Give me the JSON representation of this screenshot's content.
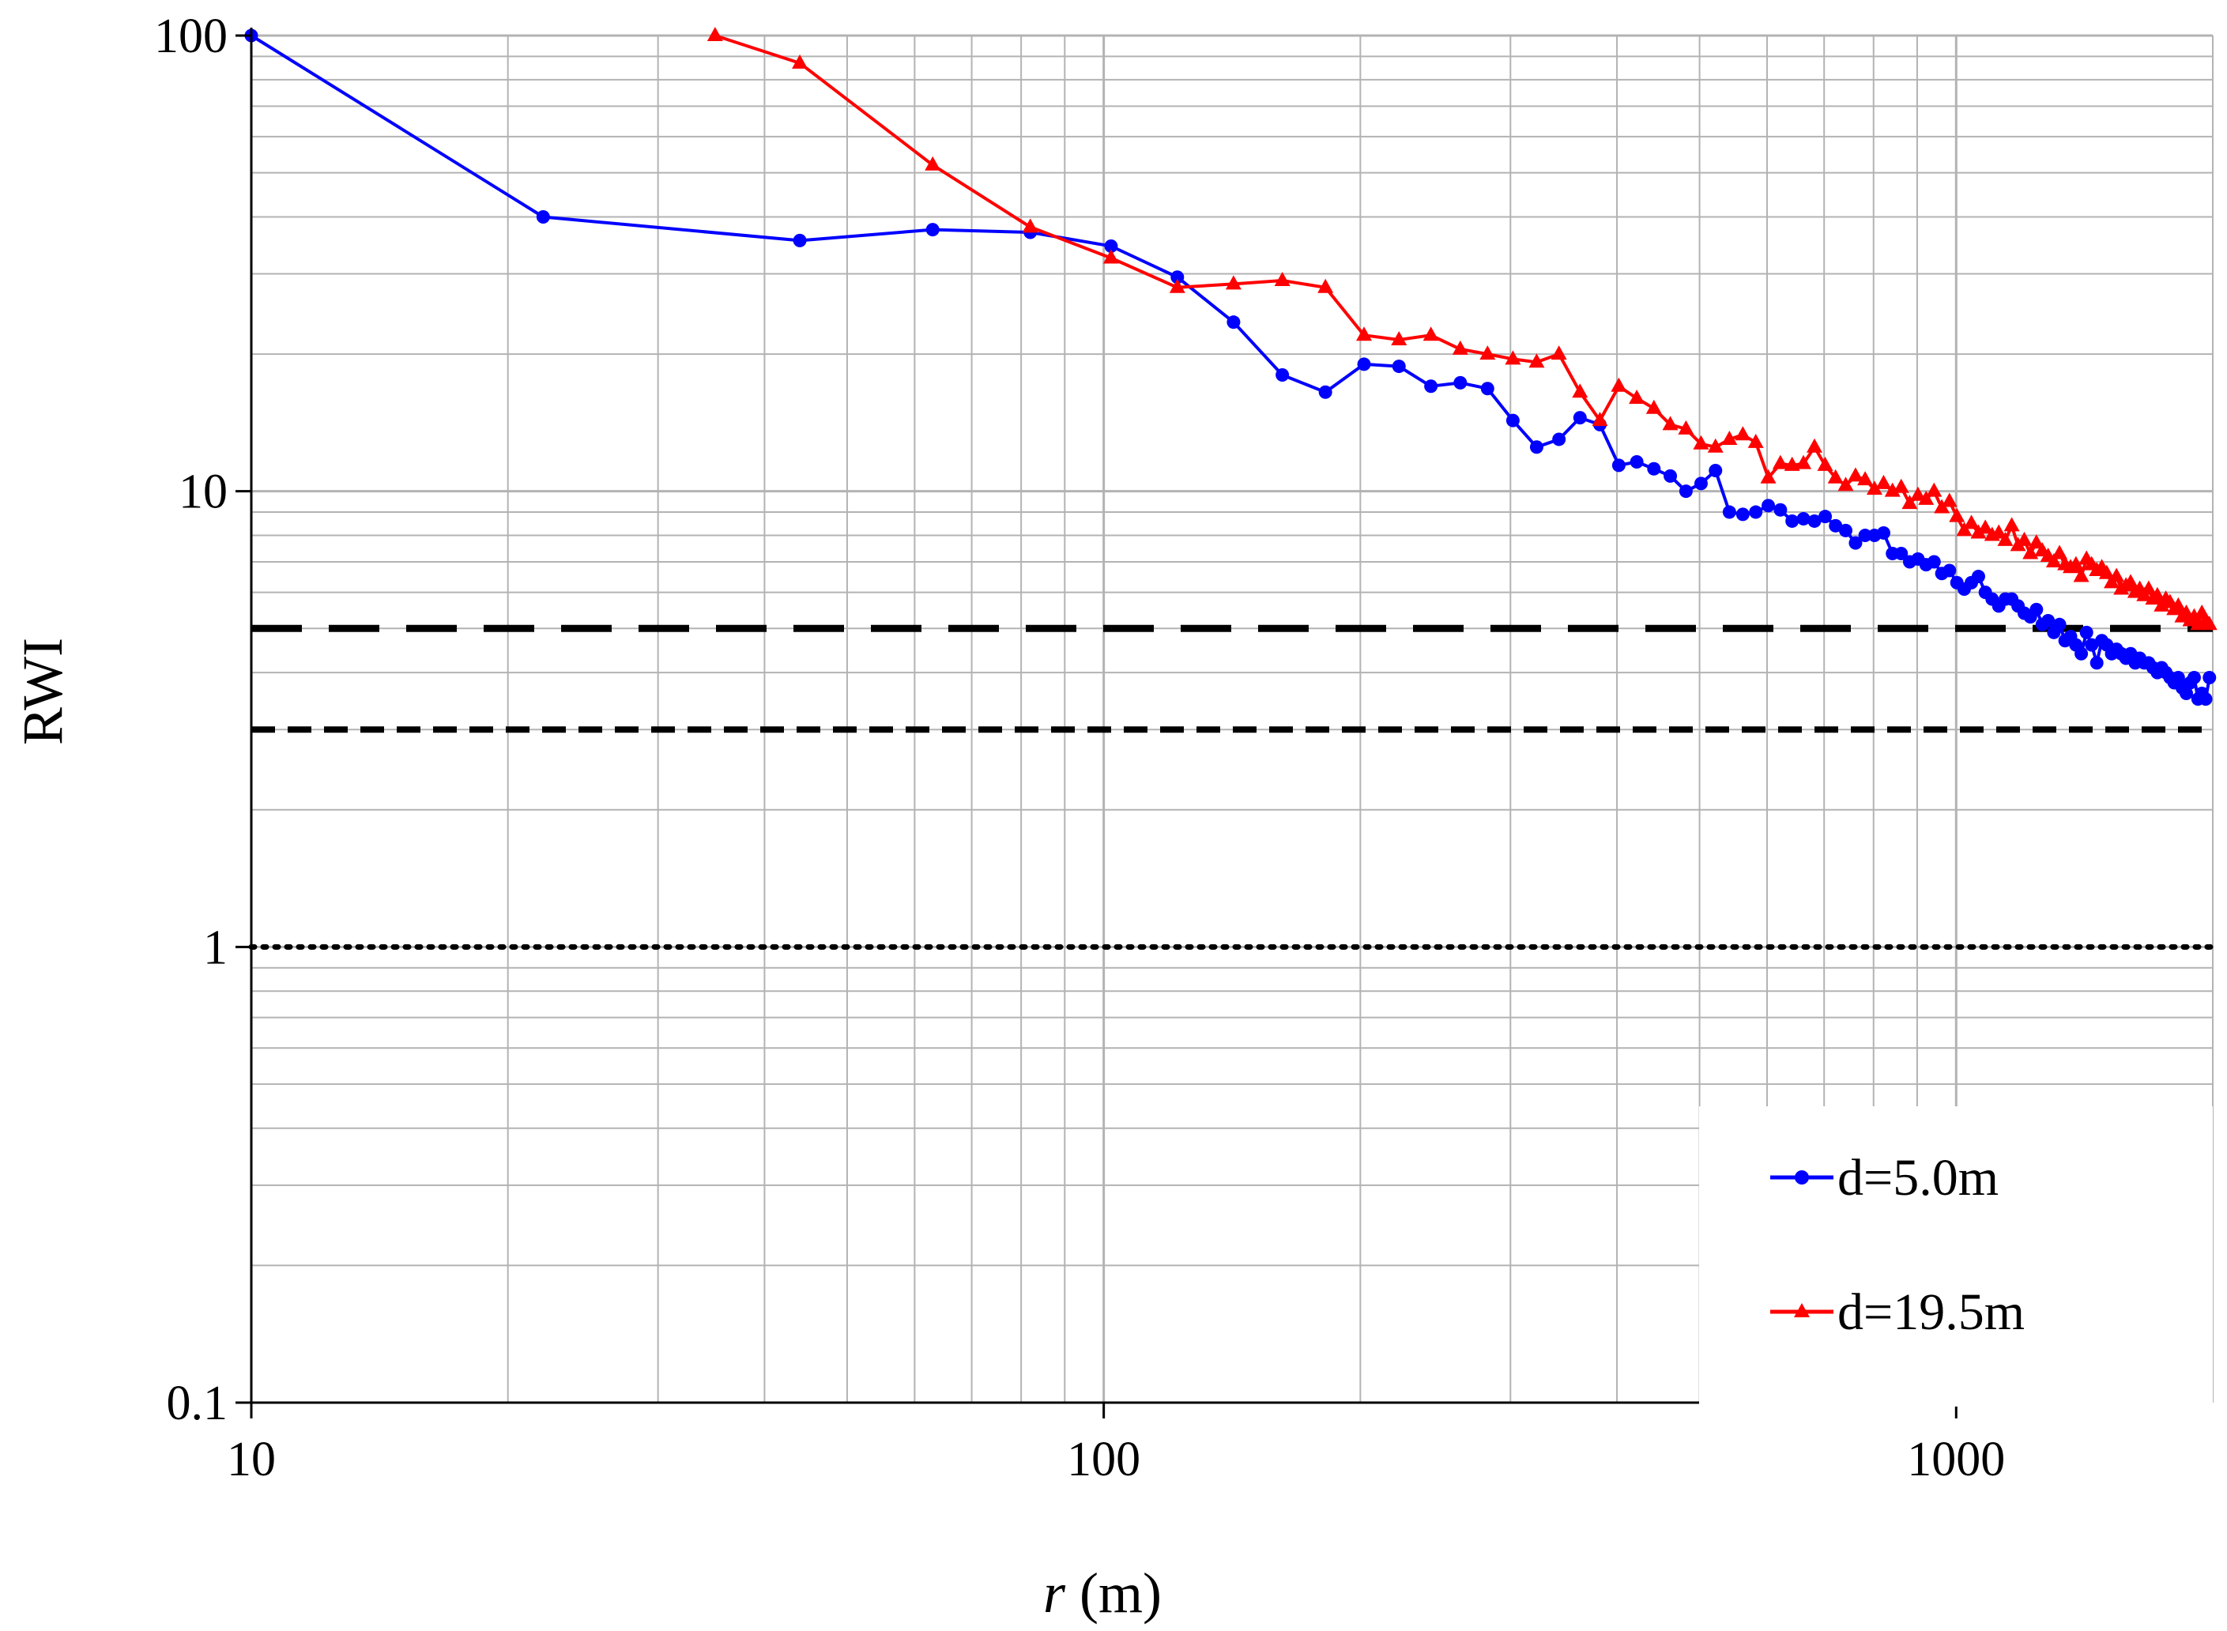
{
  "chart_data": {
    "type": "line",
    "xscale": "log",
    "yscale": "log",
    "xlim": [
      10,
      2000
    ],
    "ylim": [
      0.1,
      100
    ],
    "xlabel_italic": "r",
    "xlabel_rest": " (m)",
    "ylabel": "RWI",
    "x_ticks": [
      {
        "value": 10,
        "label": "10"
      },
      {
        "value": 100,
        "label": "100"
      },
      {
        "value": 1000,
        "label": "1000"
      }
    ],
    "y_ticks": [
      {
        "value": 0.1,
        "label": "0.1"
      },
      {
        "value": 1,
        "label": "1"
      },
      {
        "value": 10,
        "label": "10"
      },
      {
        "value": 100,
        "label": "100"
      }
    ],
    "grid": true,
    "legend_position": "bottom-right",
    "series": [
      {
        "name": "d=5.0m",
        "color": "#0000ff",
        "marker": "circle",
        "points": [
          [
            10,
            100
          ],
          [
            22,
            40
          ],
          [
            44,
            35.5
          ],
          [
            63,
            37.5
          ],
          [
            82,
            37
          ],
          [
            102,
            34.5
          ],
          [
            122,
            29.5
          ],
          [
            142,
            23.5
          ],
          [
            162,
            18
          ],
          [
            182,
            16.5
          ],
          [
            202,
            19
          ],
          [
            222,
            18.8
          ],
          [
            242,
            17
          ],
          [
            262,
            17.3
          ],
          [
            282,
            16.8
          ],
          [
            302,
            14.3
          ],
          [
            322,
            12.5
          ],
          [
            342,
            13
          ],
          [
            362,
            14.5
          ],
          [
            382,
            14
          ],
          [
            402,
            11.4
          ],
          [
            422,
            11.6
          ],
          [
            442,
            11.2
          ],
          [
            462,
            10.8
          ],
          [
            482,
            10
          ],
          [
            502,
            10.4
          ],
          [
            522,
            11.1
          ],
          [
            542,
            9
          ],
          [
            562,
            8.9
          ],
          [
            582,
            9
          ],
          [
            602,
            9.3
          ],
          [
            622,
            9.1
          ],
          [
            642,
            8.6
          ],
          [
            662,
            8.7
          ],
          [
            682,
            8.6
          ],
          [
            702,
            8.8
          ],
          [
            722,
            8.4
          ],
          [
            742,
            8.2
          ],
          [
            762,
            7.7
          ],
          [
            782,
            8
          ],
          [
            802,
            8
          ],
          [
            822,
            8.1
          ],
          [
            842,
            7.3
          ],
          [
            862,
            7.3
          ],
          [
            882,
            7
          ],
          [
            902,
            7.1
          ],
          [
            922,
            6.9
          ],
          [
            942,
            7
          ],
          [
            962,
            6.6
          ],
          [
            982,
            6.7
          ],
          [
            1002,
            6.3
          ],
          [
            1022,
            6.1
          ],
          [
            1042,
            6.3
          ],
          [
            1062,
            6.5
          ],
          [
            1082,
            6
          ],
          [
            1102,
            5.8
          ],
          [
            1122,
            5.6
          ],
          [
            1142,
            5.8
          ],
          [
            1162,
            5.8
          ],
          [
            1182,
            5.6
          ],
          [
            1202,
            5.4
          ],
          [
            1222,
            5.3
          ],
          [
            1242,
            5.5
          ],
          [
            1262,
            5.1
          ],
          [
            1282,
            5.2
          ],
          [
            1302,
            4.9
          ],
          [
            1322,
            5.1
          ],
          [
            1342,
            4.7
          ],
          [
            1362,
            4.8
          ],
          [
            1382,
            4.6
          ],
          [
            1402,
            4.4
          ],
          [
            1422,
            4.9
          ],
          [
            1442,
            4.6
          ],
          [
            1462,
            4.2
          ],
          [
            1482,
            4.7
          ],
          [
            1502,
            4.6
          ],
          [
            1522,
            4.4
          ],
          [
            1542,
            4.5
          ],
          [
            1562,
            4.4
          ],
          [
            1582,
            4.3
          ],
          [
            1602,
            4.4
          ],
          [
            1622,
            4.2
          ],
          [
            1642,
            4.3
          ],
          [
            1662,
            4.2
          ],
          [
            1682,
            4.2
          ],
          [
            1702,
            4.1
          ],
          [
            1722,
            4.0
          ],
          [
            1742,
            4.1
          ],
          [
            1762,
            4.0
          ],
          [
            1782,
            3.9
          ],
          [
            1802,
            3.8
          ],
          [
            1822,
            3.9
          ],
          [
            1842,
            3.7
          ],
          [
            1862,
            3.6
          ],
          [
            1882,
            3.8
          ],
          [
            1902,
            3.9
          ],
          [
            1922,
            3.5
          ],
          [
            1942,
            3.6
          ],
          [
            1962,
            3.5
          ],
          [
            1982,
            3.9
          ]
        ]
      },
      {
        "name": "d=19.5m",
        "color": "#ff0000",
        "marker": "triangle",
        "points": [
          [
            35,
            100
          ],
          [
            44,
            87
          ],
          [
            63,
            52
          ],
          [
            82,
            38
          ],
          [
            102,
            32.5
          ],
          [
            122,
            28
          ],
          [
            142,
            28.5
          ],
          [
            162,
            29
          ],
          [
            182,
            28
          ],
          [
            202,
            22
          ],
          [
            222,
            21.5
          ],
          [
            242,
            22
          ],
          [
            262,
            20.5
          ],
          [
            282,
            20
          ],
          [
            302,
            19.5
          ],
          [
            322,
            19.2
          ],
          [
            342,
            20
          ],
          [
            362,
            16.5
          ],
          [
            382,
            14.3
          ],
          [
            402,
            17
          ],
          [
            422,
            16
          ],
          [
            442,
            15.2
          ],
          [
            462,
            14
          ],
          [
            482,
            13.7
          ],
          [
            502,
            12.7
          ],
          [
            522,
            12.5
          ],
          [
            542,
            13
          ],
          [
            562,
            13.3
          ],
          [
            582,
            12.8
          ],
          [
            602,
            10.7
          ],
          [
            622,
            11.5
          ],
          [
            642,
            11.4
          ],
          [
            662,
            11.5
          ],
          [
            682,
            12.5
          ],
          [
            702,
            11.4
          ],
          [
            722,
            10.7
          ],
          [
            742,
            10.3
          ],
          [
            762,
            10.8
          ],
          [
            782,
            10.6
          ],
          [
            802,
            10.1
          ],
          [
            822,
            10.4
          ],
          [
            842,
            10
          ],
          [
            862,
            10.2
          ],
          [
            882,
            9.4
          ],
          [
            902,
            9.8
          ],
          [
            922,
            9.6
          ],
          [
            942,
            10
          ],
          [
            962,
            9.2
          ],
          [
            982,
            9.5
          ],
          [
            1002,
            8.8
          ],
          [
            1022,
            8.2
          ],
          [
            1042,
            8.5
          ],
          [
            1062,
            8.1
          ],
          [
            1082,
            8.3
          ],
          [
            1102,
            8
          ],
          [
            1122,
            8.1
          ],
          [
            1142,
            7.8
          ],
          [
            1162,
            8.4
          ],
          [
            1182,
            7.6
          ],
          [
            1202,
            7.8
          ],
          [
            1222,
            7.3
          ],
          [
            1242,
            7.7
          ],
          [
            1262,
            7.4
          ],
          [
            1282,
            7.2
          ],
          [
            1302,
            7
          ],
          [
            1322,
            7.3
          ],
          [
            1342,
            6.9
          ],
          [
            1362,
            6.8
          ],
          [
            1382,
            6.9
          ],
          [
            1402,
            6.5
          ],
          [
            1422,
            7.1
          ],
          [
            1442,
            6.9
          ],
          [
            1462,
            6.7
          ],
          [
            1482,
            6.8
          ],
          [
            1502,
            6.6
          ],
          [
            1522,
            6.3
          ],
          [
            1542,
            6.5
          ],
          [
            1562,
            6.1
          ],
          [
            1582,
            6.2
          ],
          [
            1602,
            6.3
          ],
          [
            1622,
            6.0
          ],
          [
            1642,
            6.1
          ],
          [
            1662,
            5.9
          ],
          [
            1682,
            6.1
          ],
          [
            1702,
            5.8
          ],
          [
            1722,
            5.9
          ],
          [
            1742,
            5.6
          ],
          [
            1762,
            5.8
          ],
          [
            1782,
            5.7
          ],
          [
            1802,
            5.5
          ],
          [
            1822,
            5.6
          ],
          [
            1842,
            5.3
          ],
          [
            1862,
            5.4
          ],
          [
            1882,
            5.2
          ],
          [
            1902,
            5.3
          ],
          [
            1922,
            5.1
          ],
          [
            1942,
            5.4
          ],
          [
            1962,
            5.2
          ],
          [
            1982,
            5.1
          ]
        ]
      }
    ],
    "reference_lines": [
      {
        "y": 5,
        "style": "long-dash"
      },
      {
        "y": 3,
        "style": "short-dash"
      },
      {
        "y": 1,
        "style": "dotted"
      }
    ]
  }
}
